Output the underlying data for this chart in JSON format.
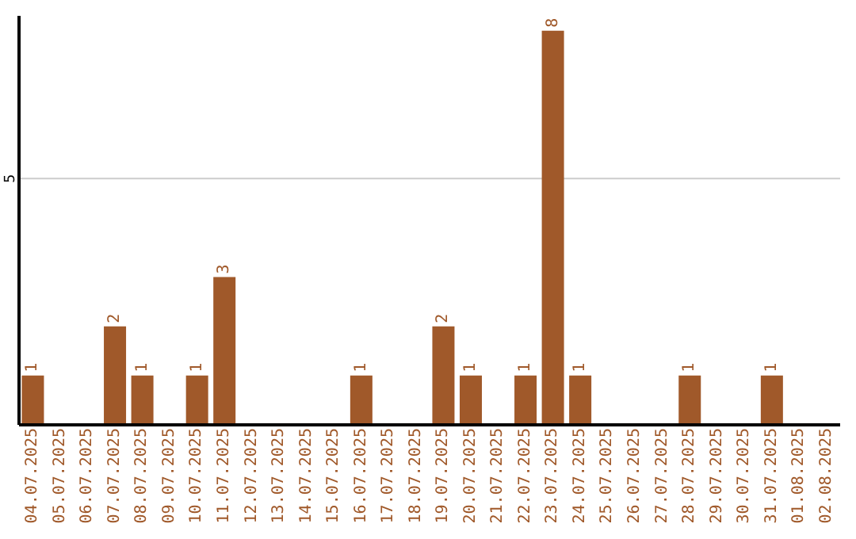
{
  "chart_data": {
    "type": "bar",
    "categories": [
      "04.07.2025",
      "05.07.2025",
      "06.07.2025",
      "07.07.2025",
      "08.07.2025",
      "09.07.2025",
      "10.07.2025",
      "11.07.2025",
      "12.07.2025",
      "13.07.2025",
      "14.07.2025",
      "15.07.2025",
      "16.07.2025",
      "17.07.2025",
      "18.07.2025",
      "19.07.2025",
      "20.07.2025",
      "21.07.2025",
      "22.07.2025",
      "23.07.2025",
      "24.07.2025",
      "25.07.2025",
      "26.07.2025",
      "27.07.2025",
      "28.07.2025",
      "29.07.2025",
      "30.07.2025",
      "31.07.2025",
      "01.08.2025",
      "02.08.2025"
    ],
    "values": [
      1,
      0,
      0,
      2,
      1,
      0,
      1,
      3,
      0,
      0,
      0,
      0,
      1,
      0,
      0,
      2,
      1,
      0,
      1,
      8,
      1,
      0,
      0,
      0,
      1,
      0,
      0,
      1,
      0,
      0
    ],
    "value_labels": [
      "1",
      null,
      null,
      "2",
      "1",
      null,
      "1",
      "3",
      null,
      null,
      null,
      null,
      "1",
      null,
      null,
      "2",
      "1",
      null,
      "1",
      "8",
      "1",
      null,
      null,
      null,
      "1",
      null,
      null,
      "1",
      null,
      null
    ],
    "color": "#a0592a",
    "ylim": [
      0,
      8.3
    ],
    "yticks": [
      5
    ],
    "grid": "y"
  }
}
